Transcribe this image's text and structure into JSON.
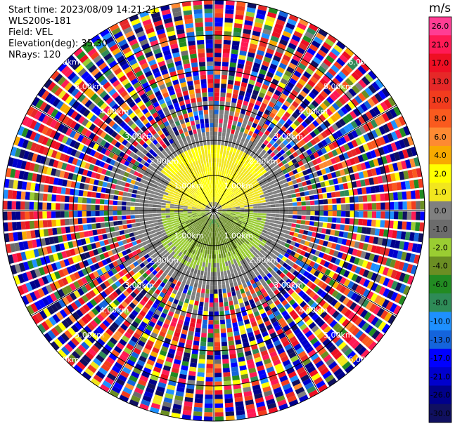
{
  "info": {
    "start_time": "Start time: 2023/08/09 14:21:21",
    "instrument": "WLS200s-181",
    "field": "Field: VEL",
    "elevation": "Elevation(deg): 35.30",
    "nrays": "NRays: 120"
  },
  "chart_data": {
    "type": "heatmap",
    "projection": "polar-ppi",
    "title": "",
    "n_rays": 120,
    "range_rings_km": [
      1.0,
      2.0,
      3.0,
      4.0,
      5.0,
      6.0
    ],
    "range_labels": [
      "1.00km",
      "2.00km",
      "3.00km",
      "4.00km",
      "5.00km",
      "6.00km"
    ],
    "spoke_angles_deg": [
      0,
      30,
      60,
      90,
      120,
      150,
      180,
      210,
      240,
      270,
      300,
      330
    ],
    "colorbar": {
      "unit": "m/s",
      "tick_labels": [
        "26.0",
        "21.0",
        "17.0",
        "13.0",
        "10.0",
        "8.0",
        "6.0",
        "4.0",
        "2.0",
        "1.0",
        "0.0",
        "-1.0",
        "-2.0",
        "-4.0",
        "-6.0",
        "-8.0",
        "-10.0",
        "-13.0",
        "-17.0",
        "-21.0",
        "-26.0",
        "-30.0"
      ],
      "colors": [
        "#ff3d94",
        "#ff1a55",
        "#ee0f23",
        "#e62828",
        "#f23c1e",
        "#fa5a1e",
        "#fe8a32",
        "#f8aa00",
        "#ffff00",
        "#f2e61e",
        "#808080",
        "#6c6c6c",
        "#9acd32",
        "#6b8e23",
        "#228b22",
        "#2e8b57",
        "#1e90ff",
        "#1464dc",
        "#0000ff",
        "#0000cd",
        "#00008b",
        "#101060"
      ]
    },
    "velocity_structure": {
      "inner_core_km": 0.25,
      "positive_zone": "north lobe ~0.3-1.5 km, yellow (1-4 m/s)",
      "negative_zone": "south-west lobe ~0.3-1.5 km, green (-1 to -6 m/s)",
      "zero_band": "grey (0 m/s) 1.3-2.3 km",
      "noise": "random colors beyond ~2.3 km"
    }
  }
}
